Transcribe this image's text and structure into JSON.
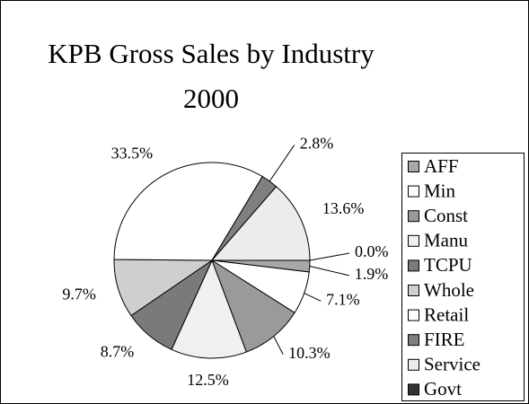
{
  "chart_data": {
    "type": "pie",
    "title": "KPB Gross Sales by Industry",
    "subtitle": "2000",
    "categories": [
      "AFF",
      "Min",
      "Const",
      "Manu",
      "TCPU",
      "Whole",
      "Retail",
      "FIRE",
      "Service",
      "Govt"
    ],
    "values": [
      1.9,
      7.1,
      10.3,
      12.5,
      8.7,
      9.7,
      33.5,
      2.8,
      13.6,
      0.0
    ],
    "value_labels": [
      "1.9%",
      "7.1%",
      "10.3%",
      "12.5%",
      "8.7%",
      "9.7%",
      "33.5%",
      "2.8%",
      "13.6%",
      "0.0%"
    ],
    "colors": [
      "#a8a8a8",
      "#ffffff",
      "#9a9a9a",
      "#f0f0f0",
      "#7a7a7a",
      "#cfcfcf",
      "#ffffff",
      "#808080",
      "#ececec",
      "#333333"
    ],
    "legend": "right"
  }
}
